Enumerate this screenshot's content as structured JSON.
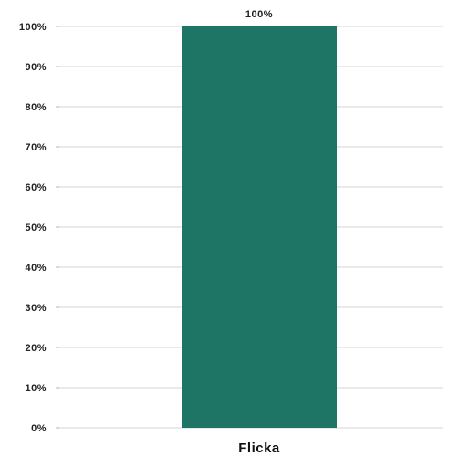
{
  "chart_data": {
    "type": "bar",
    "categories": [
      "Flicka"
    ],
    "values": [
      100
    ],
    "data_labels": [
      "100%"
    ],
    "ylim": [
      0,
      100
    ],
    "y_ticks": [
      0,
      10,
      20,
      30,
      40,
      50,
      60,
      70,
      80,
      90,
      100
    ],
    "y_tick_labels": [
      "0%",
      "10%",
      "20%",
      "30%",
      "40%",
      "50%",
      "60%",
      "70%",
      "80%",
      "90%",
      "100%"
    ],
    "grid": true,
    "legend": false,
    "title": "",
    "xlabel": "",
    "ylabel": "",
    "bar_color": "#1e7566",
    "grid_color": "#e3e3e3"
  }
}
